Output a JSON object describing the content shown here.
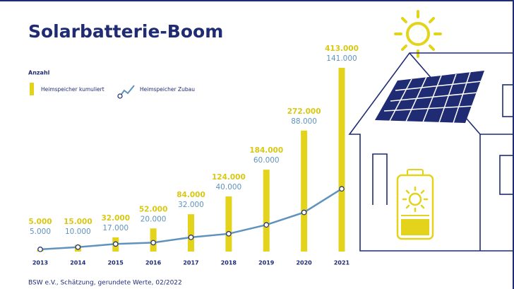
{
  "chart_data": {
    "type": "bar-line",
    "title": "Solarbatterie-Boom",
    "axis_label": "Anzahl",
    "source": "BSW e.V., Schätzung, gerundete Werte, 02/2022",
    "categories": [
      "2013",
      "2014",
      "2015",
      "2016",
      "2017",
      "2018",
      "2019",
      "2020",
      "2021"
    ],
    "series": [
      {
        "name": "Heimspeicher kumuliert",
        "type": "bar",
        "color": "#e3d31b",
        "values": [
          5000,
          15000,
          32000,
          52000,
          84000,
          124000,
          184000,
          272000,
          413000
        ],
        "value_labels": [
          "5.000",
          "15.000",
          "32.000",
          "52.000",
          "84.000",
          "124.000",
          "184.000",
          "272.000",
          "413.000"
        ]
      },
      {
        "name": "Heimspeicher Zubau",
        "type": "line",
        "color": "#5f93bd",
        "values": [
          5000,
          10000,
          17000,
          20000,
          32000,
          40000,
          60000,
          88000,
          141000
        ],
        "value_labels": [
          "5.000",
          "10.000",
          "17.000",
          "20.000",
          "32.000",
          "40.000",
          "60.000",
          "88.000",
          "141.000"
        ]
      }
    ]
  }
}
